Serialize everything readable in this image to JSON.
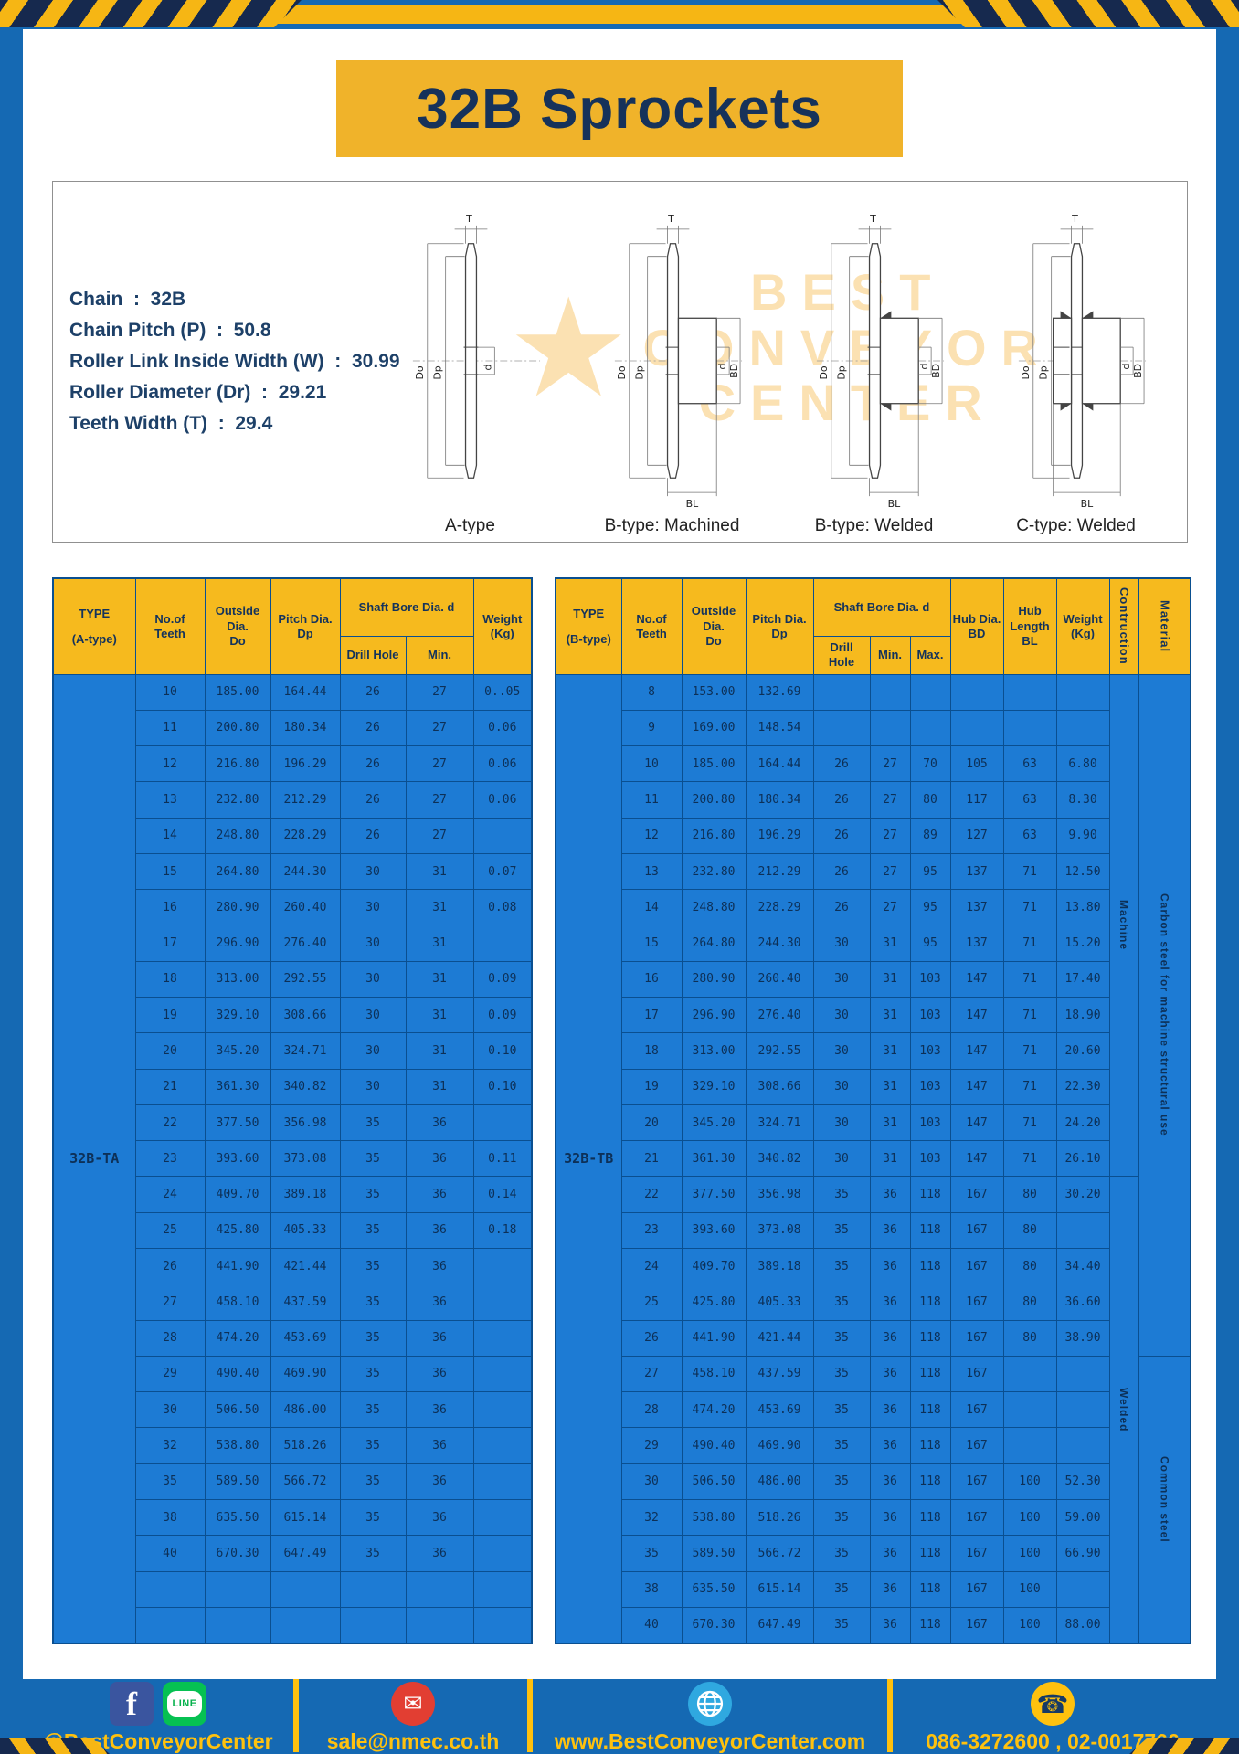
{
  "page": {
    "title": "32B Sprockets"
  },
  "specs": {
    "lines": [
      "Chain  :  32B",
      "Chain Pitch (P)  :  50.8",
      "Roller Link Inside Width (W)  :  30.99",
      "Roller Diameter (Dr)  :  29.21",
      "Teeth Width (T)  :  29.4"
    ]
  },
  "diagram": {
    "watermark": [
      "BEST",
      "CONVEYOR",
      "CENTER"
    ],
    "drawings": [
      {
        "type": "a",
        "label": "A-type",
        "dims": {
          "T": "T",
          "Do": "Do",
          "Dp": "Dp",
          "d": "d"
        }
      },
      {
        "type": "b-machined",
        "label": "B-type: Machined",
        "dims": {
          "T": "T",
          "Do": "Do",
          "Dp": "Dp",
          "d": "d",
          "BD": "BD",
          "BL": "BL"
        }
      },
      {
        "type": "b-welded",
        "label": "B-type: Welded",
        "dims": {
          "T": "T",
          "Do": "Do",
          "Dp": "Dp",
          "d": "d",
          "BD": "BD",
          "BL": "BL"
        }
      },
      {
        "type": "c-welded",
        "label": "C-type: Welded",
        "dims": {
          "T": "T",
          "Do": "Do",
          "Dp": "Dp",
          "d": "d",
          "BD": "BD",
          "BL": "BL"
        }
      }
    ]
  },
  "tables": {
    "left": {
      "type_header": [
        "TYPE",
        "(A-type)"
      ],
      "type_value": "32B-TA",
      "shaft_bore_group": "Shaft Bore Dia. d",
      "col_headers": {
        "teeth": [
          "No.of",
          "Teeth"
        ],
        "outside": [
          "Outside",
          "Dia.",
          "Do"
        ],
        "pitch": [
          "Pitch Dia.",
          "Dp"
        ],
        "drill": "Drill Hole",
        "min": "Min.",
        "weight": [
          "Weight",
          "(Kg)"
        ]
      },
      "rows": [
        [
          "10",
          "185.00",
          "164.44",
          "26",
          "27",
          "0..05"
        ],
        [
          "11",
          "200.80",
          "180.34",
          "26",
          "27",
          "0.06"
        ],
        [
          "12",
          "216.80",
          "196.29",
          "26",
          "27",
          "0.06"
        ],
        [
          "13",
          "232.80",
          "212.29",
          "26",
          "27",
          "0.06"
        ],
        [
          "14",
          "248.80",
          "228.29",
          "26",
          "27",
          ""
        ],
        [
          "15",
          "264.80",
          "244.30",
          "30",
          "31",
          "0.07"
        ],
        [
          "16",
          "280.90",
          "260.40",
          "30",
          "31",
          "0.08"
        ],
        [
          "17",
          "296.90",
          "276.40",
          "30",
          "31",
          ""
        ],
        [
          "18",
          "313.00",
          "292.55",
          "30",
          "31",
          "0.09"
        ],
        [
          "19",
          "329.10",
          "308.66",
          "30",
          "31",
          "0.09"
        ],
        [
          "20",
          "345.20",
          "324.71",
          "30",
          "31",
          "0.10"
        ],
        [
          "21",
          "361.30",
          "340.82",
          "30",
          "31",
          "0.10"
        ],
        [
          "22",
          "377.50",
          "356.98",
          "35",
          "36",
          ""
        ],
        [
          "23",
          "393.60",
          "373.08",
          "35",
          "36",
          "0.11"
        ],
        [
          "24",
          "409.70",
          "389.18",
          "35",
          "36",
          "0.14"
        ],
        [
          "25",
          "425.80",
          "405.33",
          "35",
          "36",
          "0.18"
        ],
        [
          "26",
          "441.90",
          "421.44",
          "35",
          "36",
          ""
        ],
        [
          "27",
          "458.10",
          "437.59",
          "35",
          "36",
          ""
        ],
        [
          "28",
          "474.20",
          "453.69",
          "35",
          "36",
          ""
        ],
        [
          "29",
          "490.40",
          "469.90",
          "35",
          "36",
          ""
        ],
        [
          "30",
          "506.50",
          "486.00",
          "35",
          "36",
          ""
        ],
        [
          "32",
          "538.80",
          "518.26",
          "35",
          "36",
          ""
        ],
        [
          "35",
          "589.50",
          "566.72",
          "35",
          "36",
          ""
        ],
        [
          "38",
          "635.50",
          "615.14",
          "35",
          "36",
          ""
        ],
        [
          "40",
          "670.30",
          "647.49",
          "35",
          "36",
          ""
        ],
        [
          "",
          "",
          "",
          "",
          "",
          ""
        ],
        [
          "",
          "",
          "",
          "",
          "",
          ""
        ]
      ]
    },
    "right": {
      "type_header": [
        "TYPE",
        "(B-type)"
      ],
      "type_value": "32B-TB",
      "shaft_bore_group": "Shaft Bore Dia. d",
      "col_headers": {
        "teeth": [
          "No.of",
          "Teeth"
        ],
        "outside": [
          "Outside",
          "Dia.",
          "Do"
        ],
        "pitch": [
          "Pitch Dia.",
          "Dp"
        ],
        "drill": "Drill Hole",
        "min": "Min.",
        "max": "Max.",
        "hub_dia": [
          "Hub Dia.",
          "BD"
        ],
        "hub_len": [
          "Hub",
          "Length",
          "BL"
        ],
        "weight": [
          "Weight",
          "(Kg)"
        ],
        "construction": "Contruction",
        "material": "Material"
      },
      "construction_spans": [
        {
          "label": "Machine",
          "from": 0,
          "to": 13
        },
        {
          "label": "Welded",
          "from": 14,
          "to": 26
        }
      ],
      "material_spans": [
        {
          "label": "Carbon steel for machine structural use",
          "from": 0,
          "to": 18
        },
        {
          "label": "Common steel",
          "from": 19,
          "to": 26
        }
      ],
      "rows": [
        [
          "8",
          "153.00",
          "132.69",
          "",
          "",
          "",
          "",
          "",
          ""
        ],
        [
          "9",
          "169.00",
          "148.54",
          "",
          "",
          "",
          "",
          "",
          ""
        ],
        [
          "10",
          "185.00",
          "164.44",
          "26",
          "27",
          "70",
          "105",
          "63",
          "6.80"
        ],
        [
          "11",
          "200.80",
          "180.34",
          "26",
          "27",
          "80",
          "117",
          "63",
          "8.30"
        ],
        [
          "12",
          "216.80",
          "196.29",
          "26",
          "27",
          "89",
          "127",
          "63",
          "9.90"
        ],
        [
          "13",
          "232.80",
          "212.29",
          "26",
          "27",
          "95",
          "137",
          "71",
          "12.50"
        ],
        [
          "14",
          "248.80",
          "228.29",
          "26",
          "27",
          "95",
          "137",
          "71",
          "13.80"
        ],
        [
          "15",
          "264.80",
          "244.30",
          "30",
          "31",
          "95",
          "137",
          "71",
          "15.20"
        ],
        [
          "16",
          "280.90",
          "260.40",
          "30",
          "31",
          "103",
          "147",
          "71",
          "17.40"
        ],
        [
          "17",
          "296.90",
          "276.40",
          "30",
          "31",
          "103",
          "147",
          "71",
          "18.90"
        ],
        [
          "18",
          "313.00",
          "292.55",
          "30",
          "31",
          "103",
          "147",
          "71",
          "20.60"
        ],
        [
          "19",
          "329.10",
          "308.66",
          "30",
          "31",
          "103",
          "147",
          "71",
          "22.30"
        ],
        [
          "20",
          "345.20",
          "324.71",
          "30",
          "31",
          "103",
          "147",
          "71",
          "24.20"
        ],
        [
          "21",
          "361.30",
          "340.82",
          "30",
          "31",
          "103",
          "147",
          "71",
          "26.10"
        ],
        [
          "22",
          "377.50",
          "356.98",
          "35",
          "36",
          "118",
          "167",
          "80",
          "30.20"
        ],
        [
          "23",
          "393.60",
          "373.08",
          "35",
          "36",
          "118",
          "167",
          "80",
          ""
        ],
        [
          "24",
          "409.70",
          "389.18",
          "35",
          "36",
          "118",
          "167",
          "80",
          "34.40"
        ],
        [
          "25",
          "425.80",
          "405.33",
          "35",
          "36",
          "118",
          "167",
          "80",
          "36.60"
        ],
        [
          "26",
          "441.90",
          "421.44",
          "35",
          "36",
          "118",
          "167",
          "80",
          "38.90"
        ],
        [
          "27",
          "458.10",
          "437.59",
          "35",
          "36",
          "118",
          "167",
          "",
          ""
        ],
        [
          "28",
          "474.20",
          "453.69",
          "35",
          "36",
          "118",
          "167",
          "",
          ""
        ],
        [
          "29",
          "490.40",
          "469.90",
          "35",
          "36",
          "118",
          "167",
          "",
          ""
        ],
        [
          "30",
          "506.50",
          "486.00",
          "35",
          "36",
          "118",
          "167",
          "100",
          "52.30"
        ],
        [
          "32",
          "538.80",
          "518.26",
          "35",
          "36",
          "118",
          "167",
          "100",
          "59.00"
        ],
        [
          "35",
          "589.50",
          "566.72",
          "35",
          "36",
          "118",
          "167",
          "100",
          "66.90"
        ],
        [
          "38",
          "635.50",
          "615.14",
          "35",
          "36",
          "118",
          "167",
          "100",
          ""
        ],
        [
          "40",
          "670.30",
          "647.49",
          "35",
          "36",
          "118",
          "167",
          "100",
          "88.00"
        ]
      ]
    }
  },
  "footer": {
    "line_label": "LINE",
    "sections": [
      {
        "icons": [
          "facebook-icon",
          "line-icon"
        ],
        "text": "@BestConveyorCenter"
      },
      {
        "icons": [
          "email-icon"
        ],
        "text": "sale@nmec.co.th"
      },
      {
        "icons": [
          "globe-icon"
        ],
        "text": "www.BestConveyorCenter.com"
      },
      {
        "icons": [
          "phone-icon"
        ],
        "text": "086-3272600 , 02-0017766"
      }
    ]
  },
  "colors": {
    "frame_blue": "#1569b3",
    "cell_blue": "#1d7bd4",
    "accent_yellow": "#f6ba1e",
    "navy_text": "#14335c",
    "footer_yellow": "#ffc10e"
  }
}
